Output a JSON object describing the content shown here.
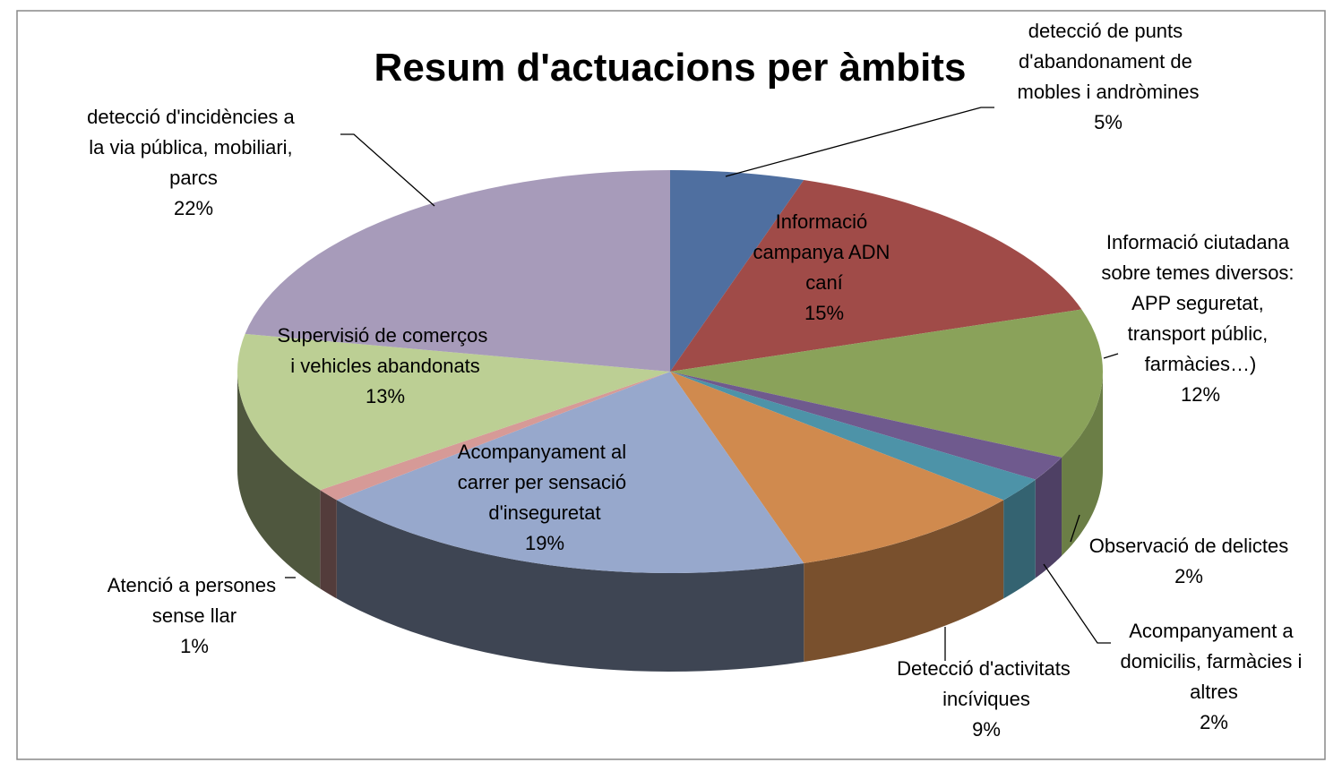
{
  "chart_data": {
    "type": "pie",
    "title": "Resum d'actuacions per àmbits",
    "categories": [
      "detecció de punts d'abandonament de mobles i andròmines",
      "Informació campanya ADN caní",
      "Informació ciutadana sobre temes diversos: APP seguretat, transport públic, farmàcies…)",
      "Acompanyament a domicilis, farmàcies i altres",
      "Observació de delictes",
      "Detecció d'activitats incíviques",
      "Acompanyament al carrer per sensació d'inseguretat",
      "Atenció a persones sense llar",
      "Supervisió de comerços i vehicles abandonats",
      "detecció d'incidències a la via pública, mobiliari, parcs"
    ],
    "values": [
      5,
      15,
      12,
      2,
      2,
      9,
      19,
      1,
      13,
      22
    ],
    "value_labels": [
      "5%",
      "15%",
      "12%",
      "2%",
      "2%",
      "9%",
      "19%",
      "1%",
      "13%",
      "22%"
    ],
    "colors": [
      "#4f6fa0",
      "#a04b48",
      "#8aa25a",
      "#6f5a8e",
      "#4d93a8",
      "#d08a4e",
      "#97a8cc",
      "#d69a97",
      "#bccf94",
      "#a79bba"
    ]
  }
}
